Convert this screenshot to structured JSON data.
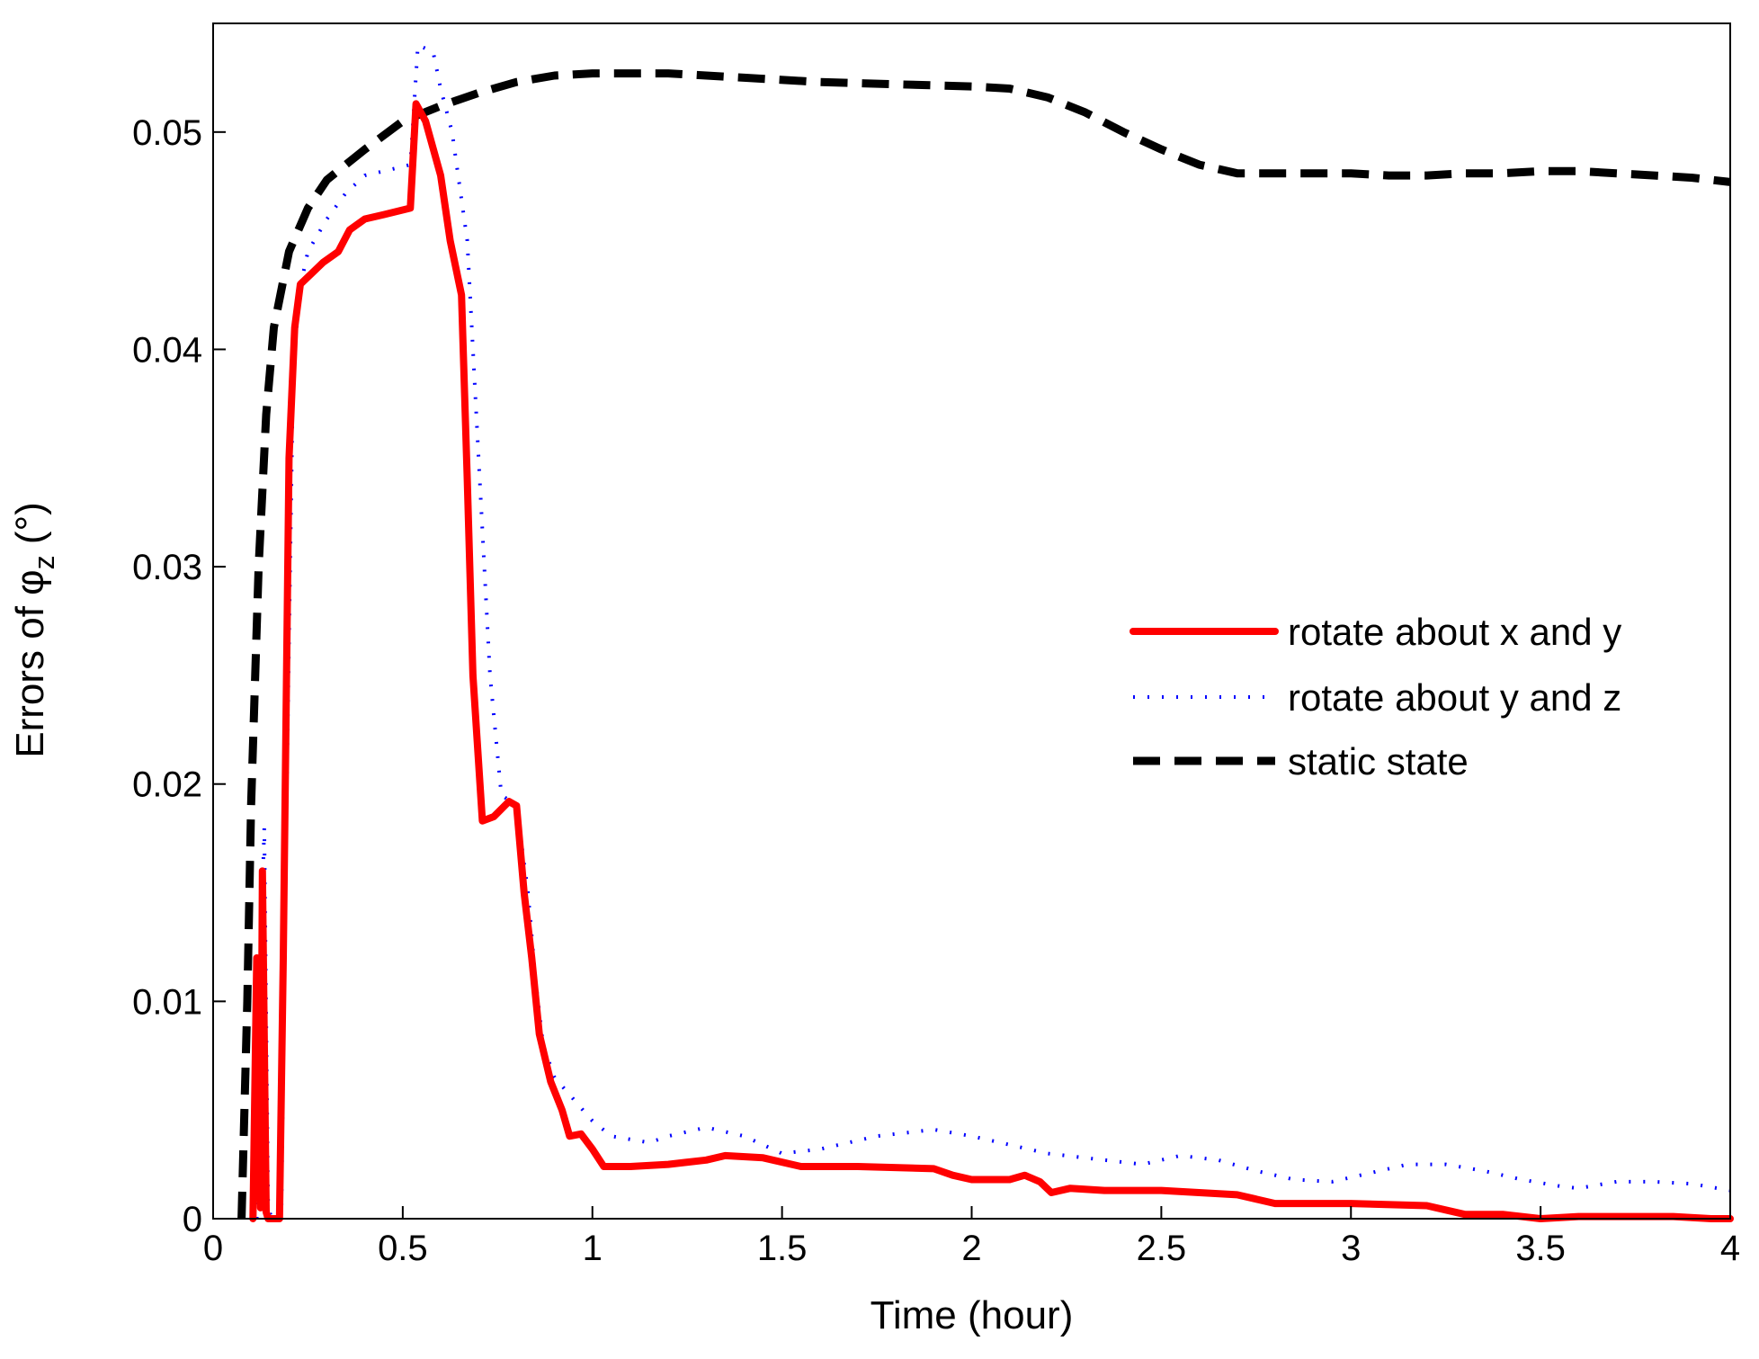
{
  "chart_data": {
    "type": "line",
    "title": "",
    "xlabel": "Time (hour)",
    "ylabel_prefix": "Errors of ",
    "ylabel_symbol": "φ",
    "ylabel_subscript": "z",
    "ylabel_suffix": " (°)",
    "xlim": [
      0,
      4
    ],
    "ylim": [
      0,
      0.055
    ],
    "xticks": [
      0,
      0.5,
      1,
      1.5,
      2,
      2.5,
      3,
      3.5,
      4
    ],
    "xtick_labels": [
      "0",
      "0.5",
      "1",
      "1.5",
      "2",
      "2.5",
      "3",
      "3.5",
      "4"
    ],
    "yticks": [
      0,
      0.01,
      0.02,
      0.03,
      0.04,
      0.05
    ],
    "ytick_labels": [
      "0",
      "0.01",
      "0.02",
      "0.03",
      "0.04",
      "0.05"
    ],
    "grid": false,
    "legend_position": "right",
    "series": [
      {
        "name": "rotate about x and y",
        "color": "#ff0000",
        "style": "solid",
        "points": [
          [
            0.105,
            0
          ],
          [
            0.115,
            0.012
          ],
          [
            0.125,
            0.0005
          ],
          [
            0.13,
            0.016
          ],
          [
            0.14,
            0.0003
          ],
          [
            0.145,
            0.0
          ],
          [
            0.175,
            0
          ],
          [
            0.185,
            0.012
          ],
          [
            0.2,
            0.035
          ],
          [
            0.215,
            0.041
          ],
          [
            0.23,
            0.043
          ],
          [
            0.26,
            0.0435
          ],
          [
            0.29,
            0.044
          ],
          [
            0.33,
            0.0445
          ],
          [
            0.36,
            0.0455
          ],
          [
            0.4,
            0.046
          ],
          [
            0.45,
            0.0462
          ],
          [
            0.52,
            0.0465
          ],
          [
            0.535,
            0.0513
          ],
          [
            0.56,
            0.0505
          ],
          [
            0.6,
            0.048
          ],
          [
            0.625,
            0.045
          ],
          [
            0.655,
            0.0425
          ],
          [
            0.67,
            0.034
          ],
          [
            0.685,
            0.025
          ],
          [
            0.71,
            0.0183
          ],
          [
            0.74,
            0.0185
          ],
          [
            0.78,
            0.0192
          ],
          [
            0.8,
            0.019
          ],
          [
            0.82,
            0.015
          ],
          [
            0.84,
            0.012
          ],
          [
            0.86,
            0.0085
          ],
          [
            0.89,
            0.0063
          ],
          [
            0.92,
            0.005
          ],
          [
            0.94,
            0.0038
          ],
          [
            0.97,
            0.0039
          ],
          [
            1.0,
            0.0032
          ],
          [
            1.03,
            0.0024
          ],
          [
            1.1,
            0.0024
          ],
          [
            1.2,
            0.0025
          ],
          [
            1.3,
            0.0027
          ],
          [
            1.35,
            0.0029
          ],
          [
            1.45,
            0.0028
          ],
          [
            1.55,
            0.0024
          ],
          [
            1.7,
            0.0024
          ],
          [
            1.9,
            0.0023
          ],
          [
            1.95,
            0.002
          ],
          [
            2.0,
            0.0018
          ],
          [
            2.1,
            0.0018
          ],
          [
            2.14,
            0.002
          ],
          [
            2.18,
            0.0017
          ],
          [
            2.21,
            0.0012
          ],
          [
            2.26,
            0.0014
          ],
          [
            2.35,
            0.0013
          ],
          [
            2.5,
            0.0013
          ],
          [
            2.6,
            0.0012
          ],
          [
            2.7,
            0.0011
          ],
          [
            2.8,
            0.0007
          ],
          [
            2.9,
            0.0007
          ],
          [
            3.0,
            0.0007
          ],
          [
            3.2,
            0.0006
          ],
          [
            3.3,
            0.0002
          ],
          [
            3.4,
            0.0002
          ],
          [
            3.5,
            0.0
          ],
          [
            3.6,
            0.0001
          ],
          [
            3.7,
            0.0001
          ],
          [
            3.85,
            0.0001
          ],
          [
            3.95,
            0.0
          ],
          [
            4.0,
            0.0
          ]
        ]
      },
      {
        "name": "rotate about y and z",
        "color": "#0000ff",
        "style": "dotted",
        "points": [
          [
            0.115,
            0
          ],
          [
            0.125,
            0.012
          ],
          [
            0.135,
            0.018
          ],
          [
            0.145,
            0.0005
          ],
          [
            0.155,
            0.0
          ],
          [
            0.18,
            0
          ],
          [
            0.19,
            0.015
          ],
          [
            0.21,
            0.038
          ],
          [
            0.225,
            0.0425
          ],
          [
            0.25,
            0.0445
          ],
          [
            0.3,
            0.046
          ],
          [
            0.35,
            0.0472
          ],
          [
            0.4,
            0.048
          ],
          [
            0.45,
            0.0482
          ],
          [
            0.52,
            0.0485
          ],
          [
            0.54,
            0.054
          ],
          [
            0.58,
            0.0537
          ],
          [
            0.6,
            0.052
          ],
          [
            0.63,
            0.05
          ],
          [
            0.67,
            0.045
          ],
          [
            0.7,
            0.035
          ],
          [
            0.73,
            0.025
          ],
          [
            0.76,
            0.0195
          ],
          [
            0.8,
            0.019
          ],
          [
            0.83,
            0.015
          ],
          [
            0.85,
            0.011
          ],
          [
            0.87,
            0.008
          ],
          [
            0.9,
            0.0065
          ],
          [
            0.95,
            0.0055
          ],
          [
            1.0,
            0.0045
          ],
          [
            1.05,
            0.0038
          ],
          [
            1.15,
            0.0035
          ],
          [
            1.2,
            0.0038
          ],
          [
            1.3,
            0.0042
          ],
          [
            1.4,
            0.0038
          ],
          [
            1.5,
            0.003
          ],
          [
            1.6,
            0.0032
          ],
          [
            1.75,
            0.0038
          ],
          [
            1.9,
            0.0041
          ],
          [
            2.0,
            0.0038
          ],
          [
            2.1,
            0.0034
          ],
          [
            2.2,
            0.003
          ],
          [
            2.35,
            0.0027
          ],
          [
            2.45,
            0.0025
          ],
          [
            2.55,
            0.0029
          ],
          [
            2.65,
            0.0027
          ],
          [
            2.75,
            0.0022
          ],
          [
            2.85,
            0.0018
          ],
          [
            2.95,
            0.0017
          ],
          [
            3.05,
            0.0021
          ],
          [
            3.15,
            0.0025
          ],
          [
            3.25,
            0.0025
          ],
          [
            3.35,
            0.0022
          ],
          [
            3.45,
            0.0018
          ],
          [
            3.55,
            0.0015
          ],
          [
            3.6,
            0.0014
          ],
          [
            3.7,
            0.0017
          ],
          [
            3.8,
            0.0017
          ],
          [
            3.9,
            0.0016
          ],
          [
            4.0,
            0.0013
          ]
        ]
      },
      {
        "name": "static state",
        "color": "#000000",
        "style": "dashed",
        "points": [
          [
            0.075,
            0
          ],
          [
            0.09,
            0.01
          ],
          [
            0.1,
            0.019
          ],
          [
            0.12,
            0.03
          ],
          [
            0.14,
            0.037
          ],
          [
            0.16,
            0.041
          ],
          [
            0.2,
            0.0445
          ],
          [
            0.25,
            0.0465
          ],
          [
            0.3,
            0.0478
          ],
          [
            0.4,
            0.0492
          ],
          [
            0.5,
            0.0505
          ],
          [
            0.6,
            0.0512
          ],
          [
            0.7,
            0.0518
          ],
          [
            0.8,
            0.0523
          ],
          [
            0.9,
            0.0526
          ],
          [
            1.0,
            0.0527
          ],
          [
            1.1,
            0.0527
          ],
          [
            1.2,
            0.0527
          ],
          [
            1.4,
            0.0525
          ],
          [
            1.6,
            0.0523
          ],
          [
            1.8,
            0.0522
          ],
          [
            2.0,
            0.0521
          ],
          [
            2.1,
            0.052
          ],
          [
            2.2,
            0.0516
          ],
          [
            2.3,
            0.0509
          ],
          [
            2.4,
            0.05
          ],
          [
            2.5,
            0.0492
          ],
          [
            2.6,
            0.0485
          ],
          [
            2.7,
            0.0481
          ],
          [
            2.8,
            0.0481
          ],
          [
            2.9,
            0.0481
          ],
          [
            3.0,
            0.0481
          ],
          [
            3.1,
            0.048
          ],
          [
            3.2,
            0.048
          ],
          [
            3.3,
            0.0481
          ],
          [
            3.4,
            0.0481
          ],
          [
            3.5,
            0.0482
          ],
          [
            3.6,
            0.0482
          ],
          [
            3.7,
            0.0481
          ],
          [
            3.8,
            0.048
          ],
          [
            3.9,
            0.0479
          ],
          [
            4.0,
            0.0477
          ]
        ]
      }
    ]
  }
}
